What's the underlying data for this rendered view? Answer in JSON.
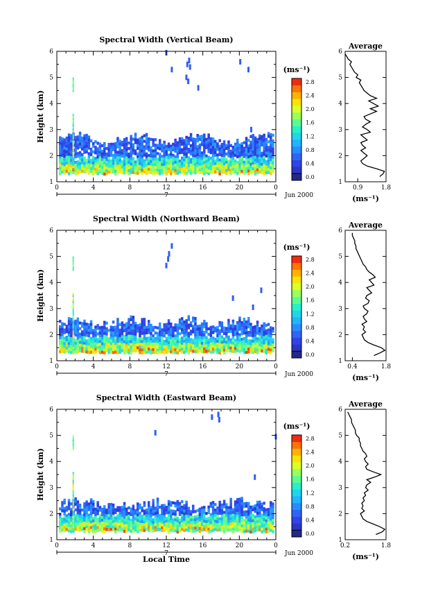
{
  "chart_data": [
    {
      "type": "heatmap",
      "title": "Spectral Width (Vertical Beam)",
      "ylabel": "Height (km)",
      "xlabel": "",
      "x_ticks": [
        "0",
        "4",
        "8",
        "12",
        "16",
        "20",
        "0"
      ],
      "y_ticks": [
        "1",
        "2",
        "3",
        "4",
        "5",
        "6"
      ],
      "xlim": [
        0,
        24
      ],
      "ylim": [
        1,
        6
      ],
      "date_label": "7",
      "date_suffix": "Jun 2000",
      "colorbar": {
        "unit": "(ms⁻¹)",
        "range": [
          0,
          3.0
        ],
        "tick_labels": [
          "0.0",
          "0.4",
          "0.8",
          "1.2",
          "1.6",
          "2.0",
          "2.4",
          "2.8"
        ]
      },
      "average": {
        "title": "Average",
        "xlabel": "(ms⁻¹)",
        "x_ticks": [
          "0.9",
          "1.8"
        ],
        "xlim": [
          0.5,
          1.8
        ],
        "heights": [
          1.2,
          1.3,
          1.4,
          1.5,
          1.6,
          1.7,
          1.8,
          1.9,
          2.0,
          2.1,
          2.2,
          2.3,
          2.4,
          2.5,
          2.6,
          2.7,
          2.8,
          2.9,
          3.0,
          3.1,
          3.2,
          3.3,
          3.4,
          3.5,
          3.6,
          3.7,
          3.8,
          3.9,
          4.0,
          4.1,
          4.2,
          4.3,
          4.4,
          4.5,
          4.6,
          4.7,
          4.8,
          4.9,
          5.0,
          5.1,
          5.2,
          5.3,
          5.4,
          5.5,
          5.6,
          5.7,
          5.8,
          5.9
        ],
        "values": [
          1.6,
          1.7,
          1.75,
          1.5,
          1.2,
          1.05,
          1.0,
          1.1,
          1.2,
          1.1,
          1.0,
          1.15,
          1.05,
          1.0,
          1.2,
          1.1,
          1.0,
          1.3,
          1.2,
          1.05,
          1.15,
          1.3,
          1.15,
          1.1,
          1.3,
          1.5,
          1.3,
          1.55,
          1.4,
          1.25,
          1.5,
          1.3,
          1.2,
          1.1,
          1.05,
          1.0,
          0.95,
          1.0,
          0.85,
          0.9,
          0.8,
          0.75,
          0.7,
          0.65,
          0.7,
          0.6,
          0.55,
          0.5
        ]
      }
    },
    {
      "type": "heatmap",
      "title": "Spectral Width (Northward Beam)",
      "ylabel": "Height (km)",
      "xlabel": "",
      "x_ticks": [
        "0",
        "4",
        "8",
        "12",
        "16",
        "20",
        "0"
      ],
      "y_ticks": [
        "1",
        "2",
        "3",
        "4",
        "5",
        "6"
      ],
      "xlim": [
        0,
        24
      ],
      "ylim": [
        1,
        6
      ],
      "date_label": "7",
      "date_suffix": "Jun 2000",
      "colorbar": {
        "unit": "(ms⁻¹)",
        "range": [
          0,
          3.0
        ],
        "tick_labels": [
          "0.0",
          "0.4",
          "0.8",
          "1.2",
          "1.6",
          "2.0",
          "2.4",
          "2.8"
        ]
      },
      "average": {
        "title": "Average",
        "xlabel": "(ms⁻¹)",
        "x_ticks": [
          "0.4",
          "1.8"
        ],
        "xlim": [
          0.1,
          1.8
        ],
        "heights": [
          1.2,
          1.3,
          1.4,
          1.5,
          1.6,
          1.7,
          1.8,
          1.9,
          2.0,
          2.1,
          2.2,
          2.3,
          2.4,
          2.5,
          2.6,
          2.7,
          2.8,
          2.9,
          3.0,
          3.1,
          3.2,
          3.3,
          3.4,
          3.5,
          3.6,
          3.7,
          3.8,
          3.9,
          4.0,
          4.1,
          4.2,
          4.3,
          4.4,
          4.5,
          4.6,
          4.7,
          4.8,
          4.9,
          5.0,
          5.1,
          5.2,
          5.3,
          5.4,
          5.5,
          5.6,
          5.7,
          5.8,
          5.9
        ],
        "values": [
          1.3,
          1.55,
          1.75,
          1.6,
          1.3,
          1.05,
          0.9,
          0.85,
          0.8,
          0.95,
          0.85,
          0.9,
          0.8,
          1.0,
          0.9,
          0.85,
          1.0,
          1.05,
          0.9,
          0.85,
          1.05,
          1.1,
          0.95,
          1.0,
          1.2,
          1.1,
          1.0,
          1.3,
          1.2,
          1.1,
          1.35,
          1.25,
          1.1,
          1.0,
          0.95,
          0.85,
          0.8,
          0.75,
          0.7,
          0.65,
          0.6,
          0.55,
          0.55,
          0.5,
          0.5,
          0.45,
          0.4,
          0.4
        ]
      }
    },
    {
      "type": "heatmap",
      "title": "Spectral Width (Eastward Beam)",
      "ylabel": "Height (km)",
      "xlabel": "Local Time",
      "x_ticks": [
        "0",
        "4",
        "8",
        "12",
        "16",
        "20",
        "0"
      ],
      "y_ticks": [
        "1",
        "2",
        "3",
        "4",
        "5",
        "6"
      ],
      "xlim": [
        0,
        24
      ],
      "ylim": [
        1,
        6
      ],
      "date_label": "7",
      "date_suffix": "Jun 2000",
      "colorbar": {
        "unit": "(ms⁻¹)",
        "range": [
          0,
          3.0
        ],
        "tick_labels": [
          "0.0",
          "0.4",
          "0.8",
          "1.2",
          "1.6",
          "2.0",
          "2.4",
          "2.8"
        ]
      },
      "average": {
        "title": "Average",
        "xlabel": "(ms⁻¹)",
        "x_ticks": [
          "0.2",
          "1.8"
        ],
        "xlim": [
          0.2,
          1.8
        ],
        "heights": [
          1.2,
          1.3,
          1.4,
          1.5,
          1.6,
          1.7,
          1.8,
          1.9,
          2.0,
          2.1,
          2.2,
          2.3,
          2.4,
          2.5,
          2.6,
          2.7,
          2.8,
          2.9,
          3.0,
          3.1,
          3.2,
          3.3,
          3.4,
          3.5,
          3.6,
          3.7,
          3.8,
          3.9,
          4.0,
          4.1,
          4.2,
          4.3,
          4.4,
          4.5,
          4.6,
          4.7,
          4.8,
          4.9,
          5.0,
          5.1,
          5.2,
          5.3,
          5.4,
          5.5,
          5.6,
          5.7,
          5.8,
          5.9
        ],
        "values": [
          1.4,
          1.65,
          1.75,
          1.55,
          1.3,
          1.05,
          0.9,
          0.85,
          0.8,
          0.95,
          0.85,
          0.9,
          0.85,
          0.95,
          0.9,
          1.0,
          0.95,
          1.1,
          1.0,
          1.05,
          1.2,
          1.05,
          1.35,
          1.6,
          1.3,
          1.05,
          1.0,
          1.1,
          1.0,
          0.95,
          1.05,
          1.0,
          0.9,
          0.85,
          0.8,
          0.8,
          0.75,
          0.75,
          0.65,
          0.6,
          0.6,
          0.55,
          0.5,
          0.45,
          0.45,
          0.4,
          0.35,
          0.3
        ]
      }
    }
  ]
}
